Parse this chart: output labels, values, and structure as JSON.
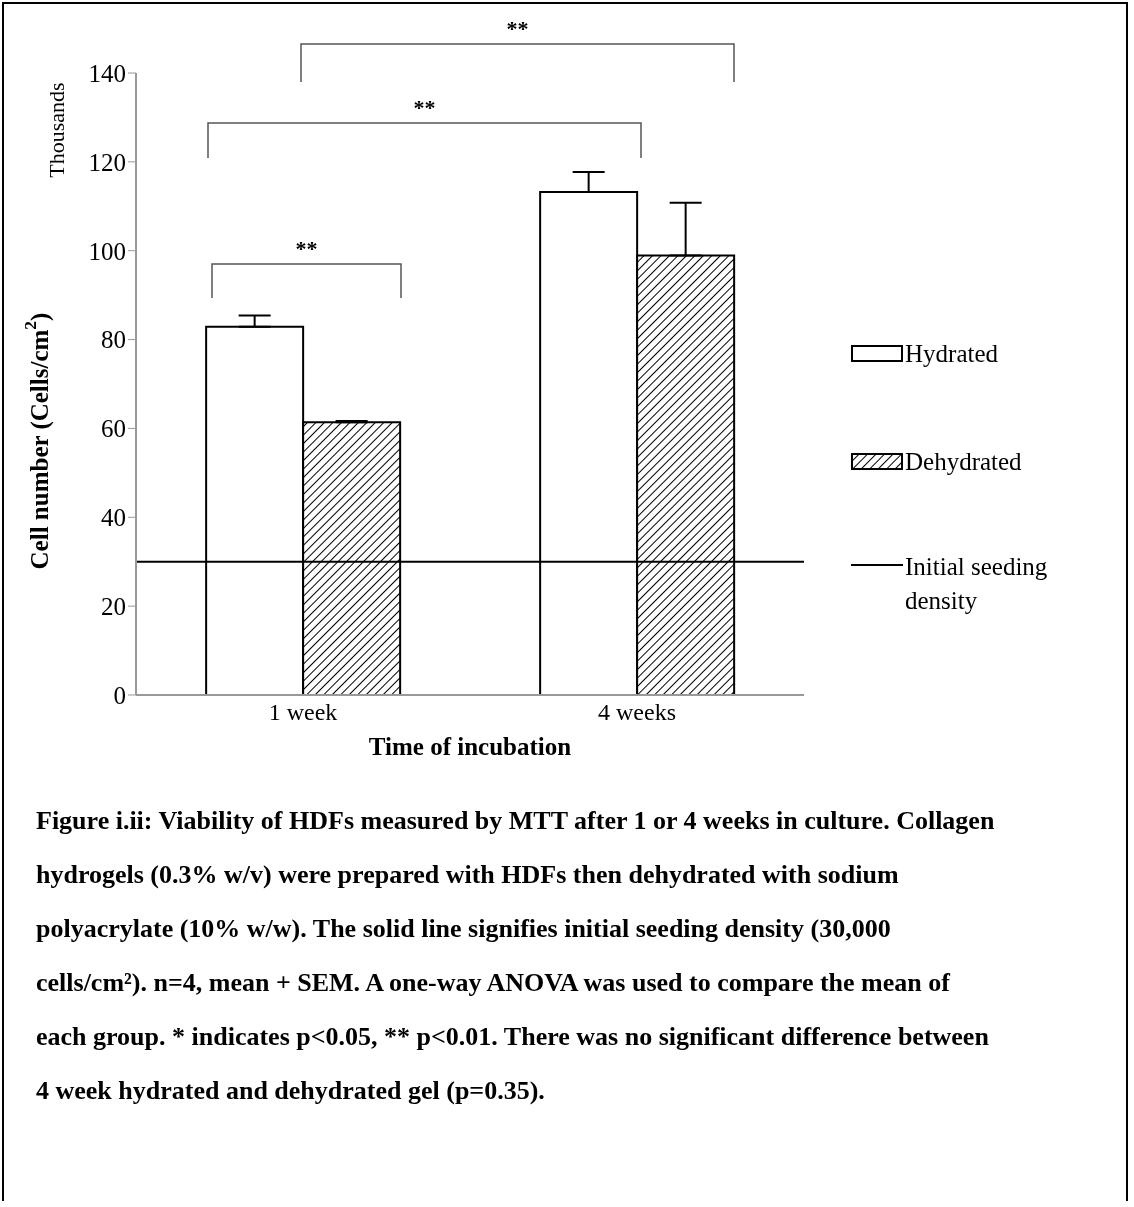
{
  "chart_data": {
    "type": "bar",
    "categories": [
      "1 week",
      "4 weeks"
    ],
    "series": [
      {
        "name": "Hydrated",
        "color": "#ffffff",
        "values": [
          82.9,
          113.2
        ],
        "errors": [
          [
            82.9,
            85.4
          ],
          [
            113.2,
            117.7
          ]
        ]
      },
      {
        "name": "Dehydrated",
        "color": "#000000",
        "values": [
          61.4,
          98.9
        ],
        "errors": [
          [
            61.4,
            61.7
          ],
          [
            98.9,
            110.8
          ]
        ]
      }
    ],
    "xlabel": "Time of incubation",
    "ylabel": "Cell number (Cells/cm$^{2}$)",
    "ylim": [
      0,
      140
    ],
    "yticks": [
      0,
      20,
      40,
      60,
      80,
      100,
      120,
      140
    ],
    "ref_lines": [
      {
        "axis": "y",
        "value": 30,
        "label": "Initial seeding density",
        "color": "#000000"
      }
    ],
    "legend": "right",
    "grid": false,
    "annotations": [
      "Thousands",
      "**",
      "**",
      "**",
      "Figure i.ii: Viability of HDFs measured by MTT after 1 or 4 weeks in culture. Collagen hydrogels (0.3% w/v) were prepared with HDFs then dehydrated with sodium polyacrylate (10% w/w). The solid line signifies initial seeding density (30,000 cells/cm²). n=4, mean + SEM. A one-way ANOVA was used to compare the mean of each group. * indicates p<0.05, ** p<0.01. There was no significant difference between 4 week hydrated and dehydrated gel (p=0.35)."
    ]
  }
}
